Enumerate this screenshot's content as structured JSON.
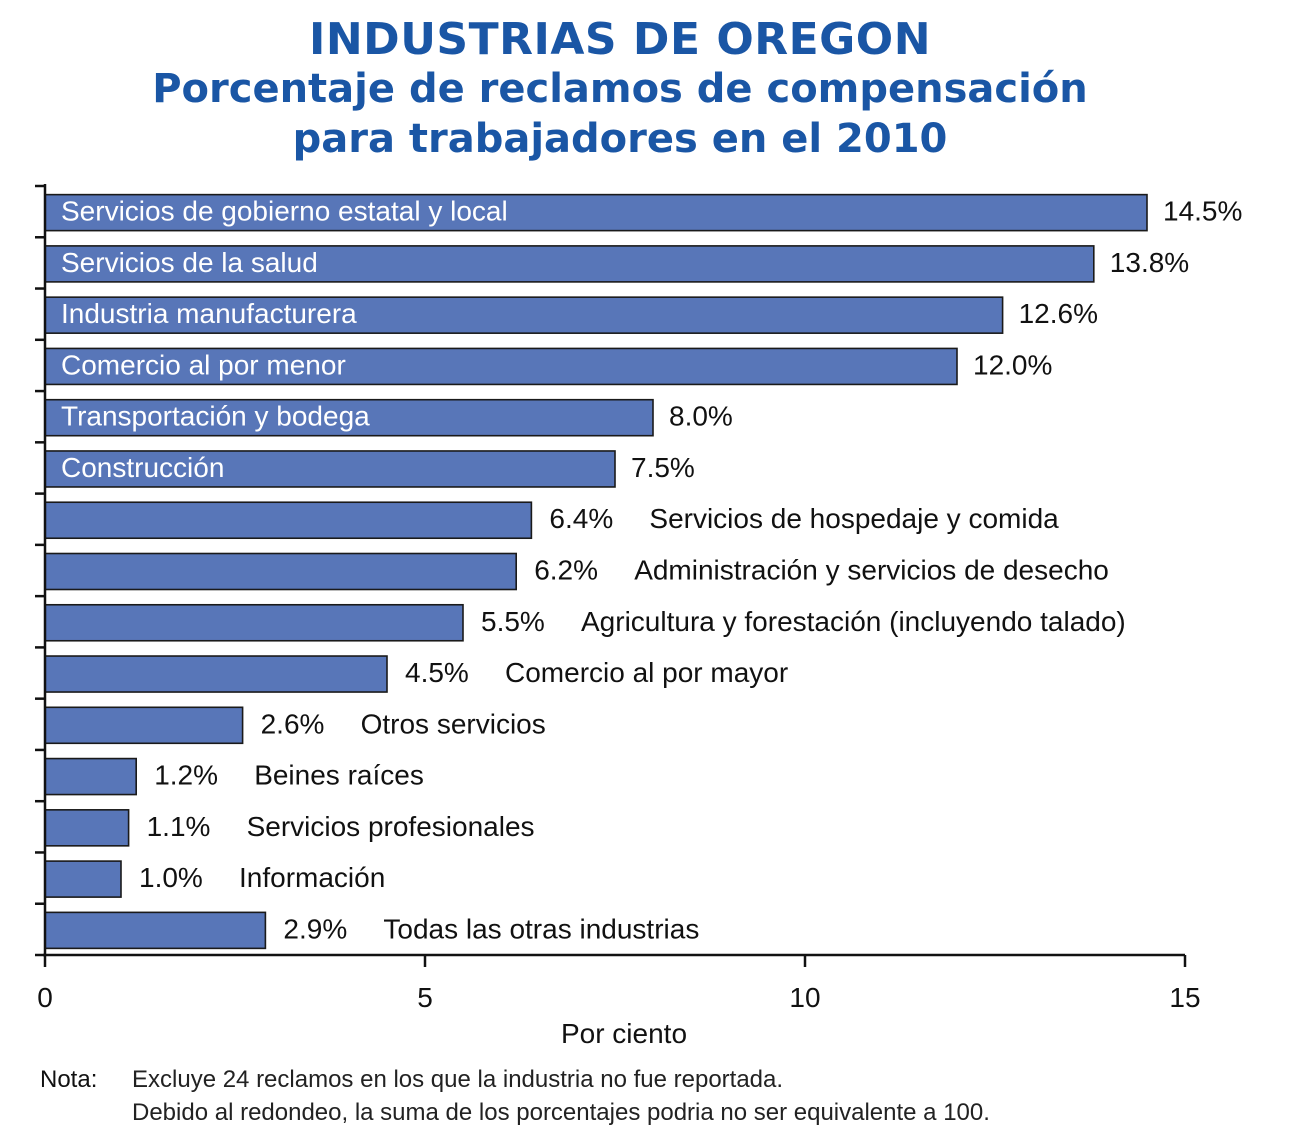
{
  "title": {
    "line1": "INDUSTRIAS DE OREGON",
    "line2": "Porcentaje de reclamos de compensación",
    "line3": "para trabajadores en el 2010"
  },
  "chart_data": {
    "type": "bar",
    "orientation": "horizontal",
    "categories": [
      "Servicios de gobierno estatal y local",
      "Servicios de la salud",
      "Industria manufacturera",
      "Comercio al por menor",
      "Transportación y bodega",
      "Construcción",
      "Servicios de hospedaje y comida",
      "Administración y servicios de desecho",
      "Agricultura y forestación (incluyendo talado)",
      "Comercio al por mayor",
      "Otros servicios",
      "Beines raíces",
      "Servicios profesionales",
      "Información",
      "Todas las otras industrias"
    ],
    "values": [
      14.5,
      13.8,
      12.6,
      12.0,
      8.0,
      7.5,
      6.4,
      6.2,
      5.5,
      4.5,
      2.6,
      1.2,
      1.1,
      1.0,
      2.9
    ],
    "value_labels": [
      "14.5%",
      "13.8%",
      "12.6%",
      "12.0%",
      "8.0%",
      "7.5%",
      "6.4%",
      "6.2%",
      "5.5%",
      "4.5%",
      "2.6%",
      "1.2%",
      "1.1%",
      "1.0%",
      "2.9%"
    ],
    "label_inside": [
      true,
      true,
      true,
      true,
      true,
      true,
      false,
      false,
      false,
      false,
      false,
      false,
      false,
      false,
      false
    ],
    "xlabel": "Por ciento",
    "xlim": [
      0,
      15
    ],
    "xticks": [
      0,
      5,
      10,
      15
    ],
    "xtick_labels": [
      "0",
      "5",
      "10",
      "15"
    ],
    "bar_color": "#5876b8",
    "title_color": "#1a56a5"
  },
  "note": {
    "label": "Nota:",
    "line1": "Excluye 24 reclamos en los que la industria no fue reportada.",
    "line2": "Debido al redondeo, la suma de los porcentajes podria no ser equivalente a 100."
  }
}
